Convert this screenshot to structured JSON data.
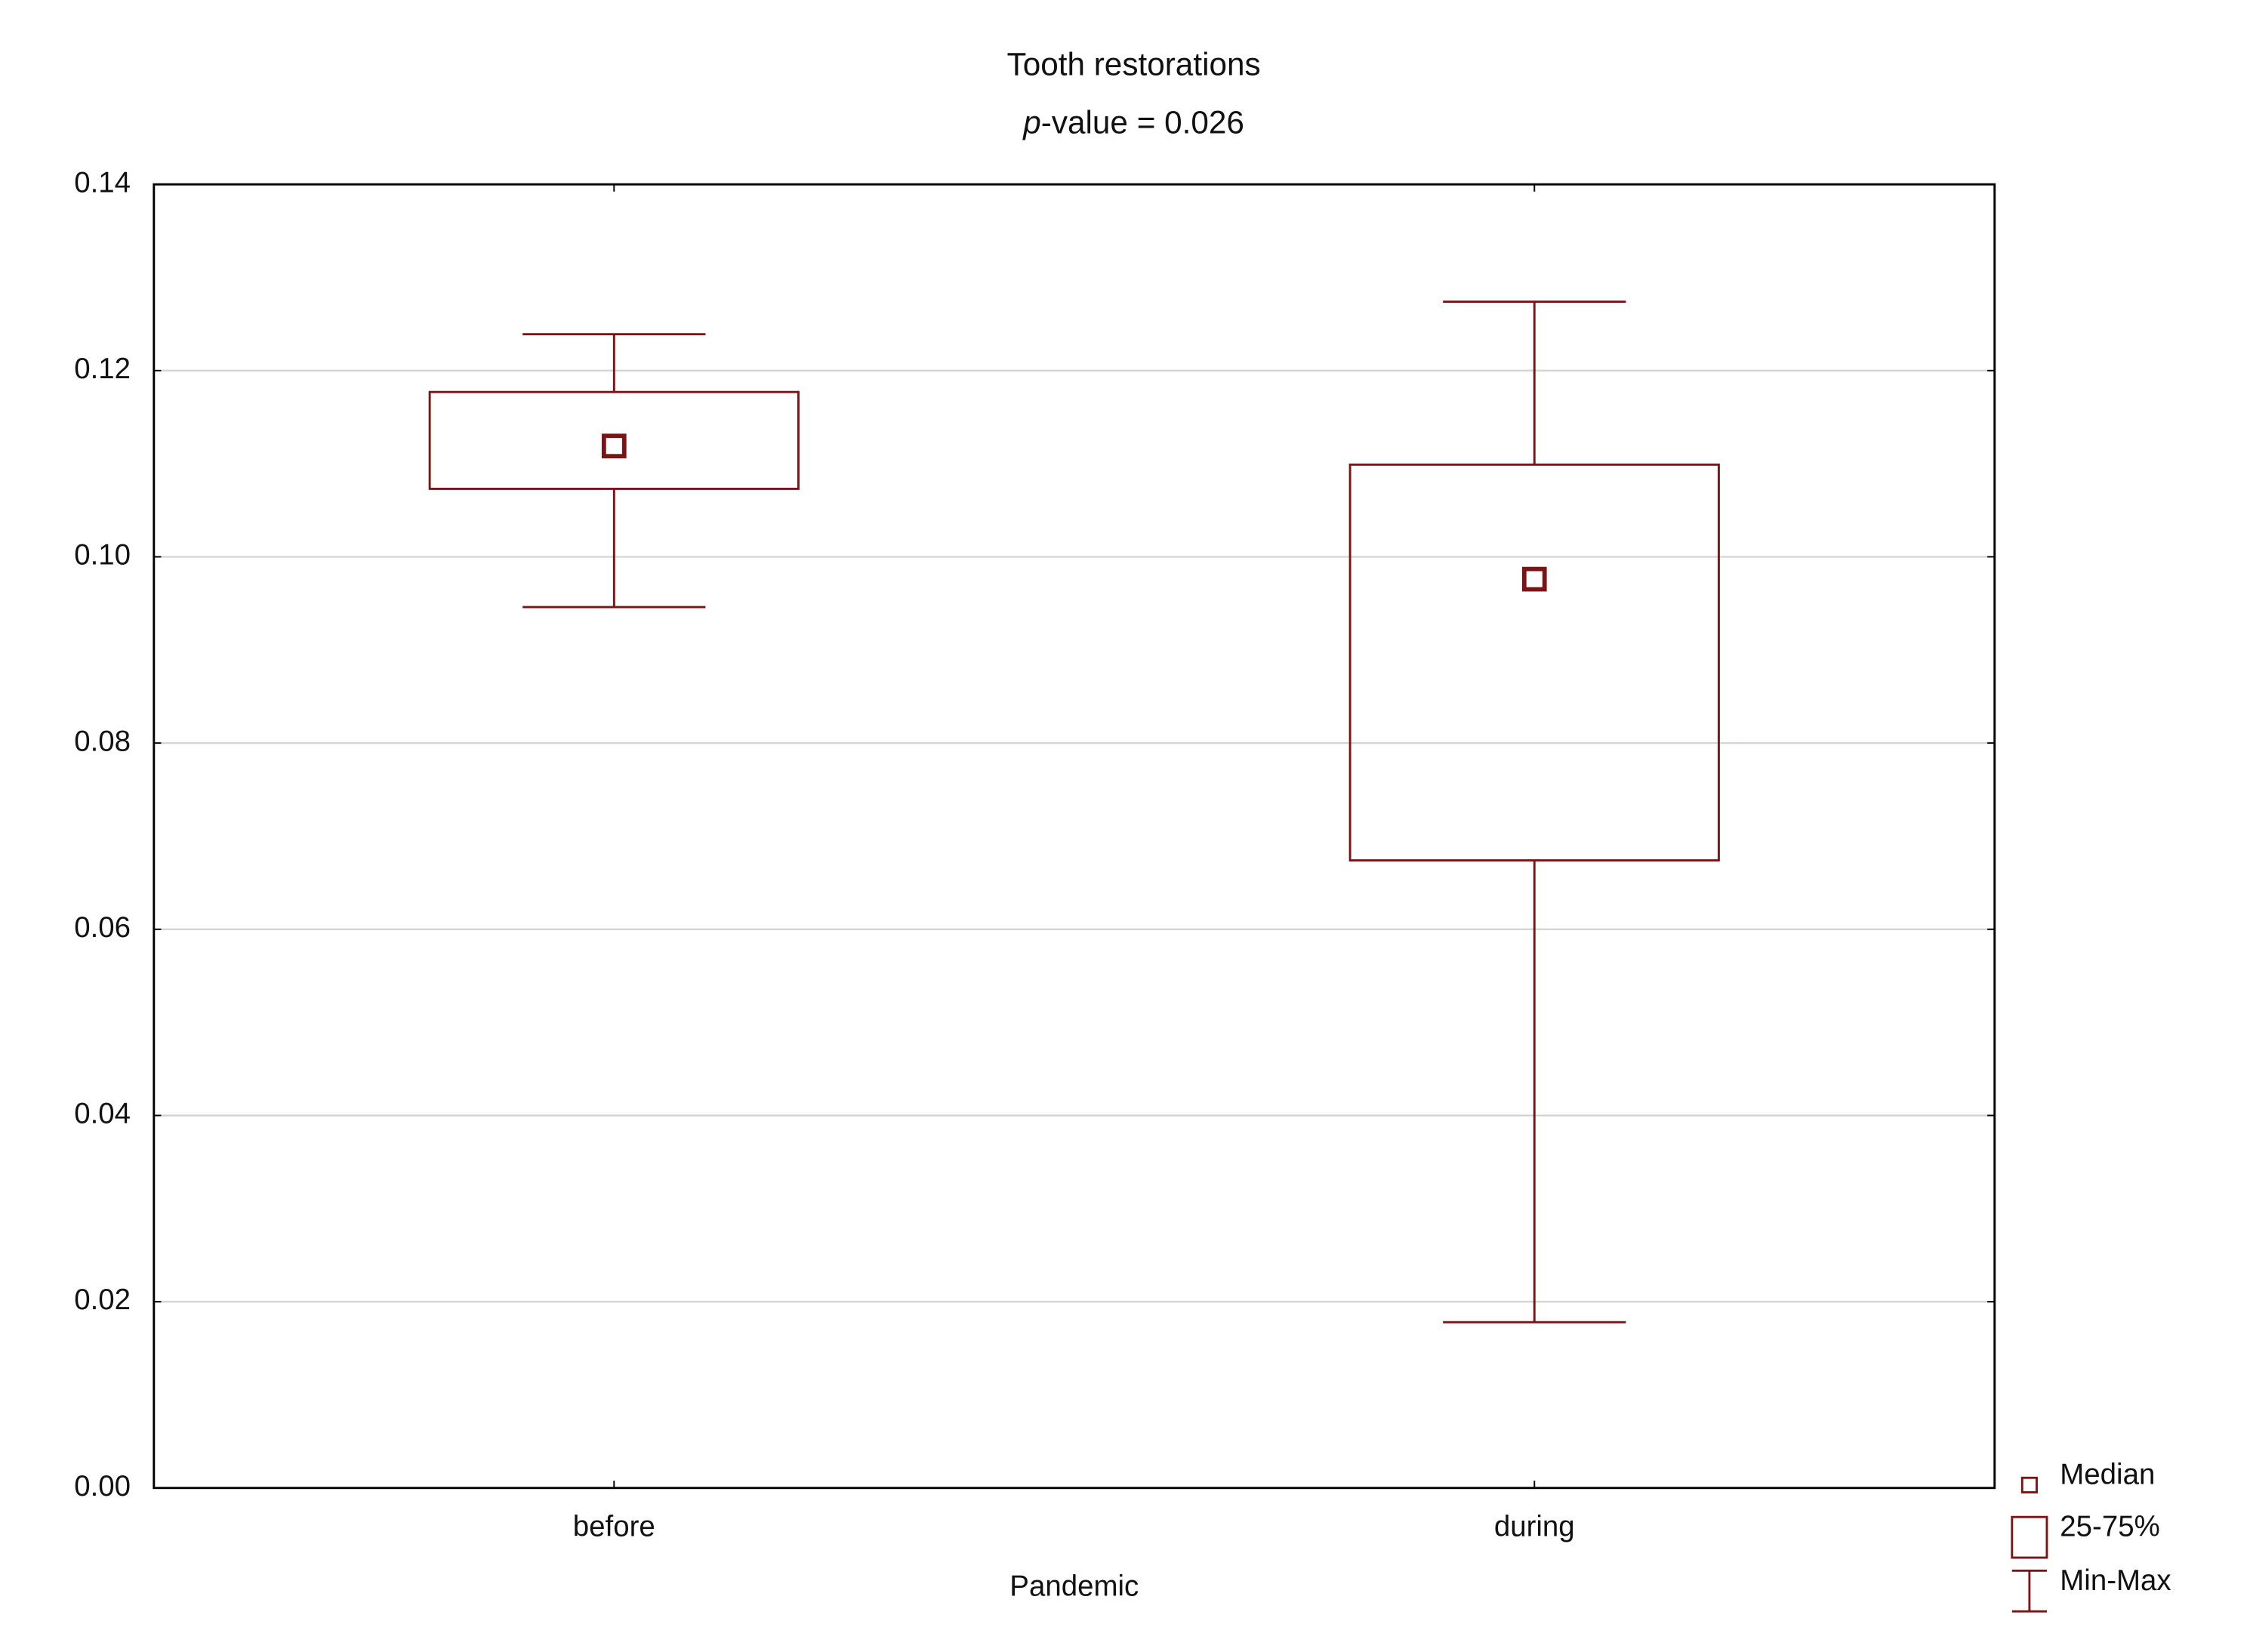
{
  "chart_data": {
    "type": "box",
    "title": "Tooth restorations",
    "subtitle_italic": "p",
    "subtitle": "-value = 0.026",
    "x_label": "Pandemic",
    "categories": [
      "before",
      "during"
    ],
    "min": [
      0.0946,
      0.0178
    ],
    "q1": [
      0.1073,
      0.0674
    ],
    "median": [
      0.1119,
      0.0976
    ],
    "q3": [
      0.1177,
      0.1099
    ],
    "max": [
      0.1239,
      0.1274
    ],
    "color": "#7b1414",
    "ylim": [
      0,
      0.14
    ],
    "yticks": [
      {
        "value": 0,
        "label": "0.00"
      },
      0.02,
      0.04,
      0.06,
      0.08,
      {
        "value": 0.1,
        "label": "0.10"
      },
      0.12,
      0.14
    ],
    "grid": true,
    "legend": [
      "Median",
      "25-75%",
      "Min-Max"
    ],
    "legend_position": "bottom-right"
  }
}
